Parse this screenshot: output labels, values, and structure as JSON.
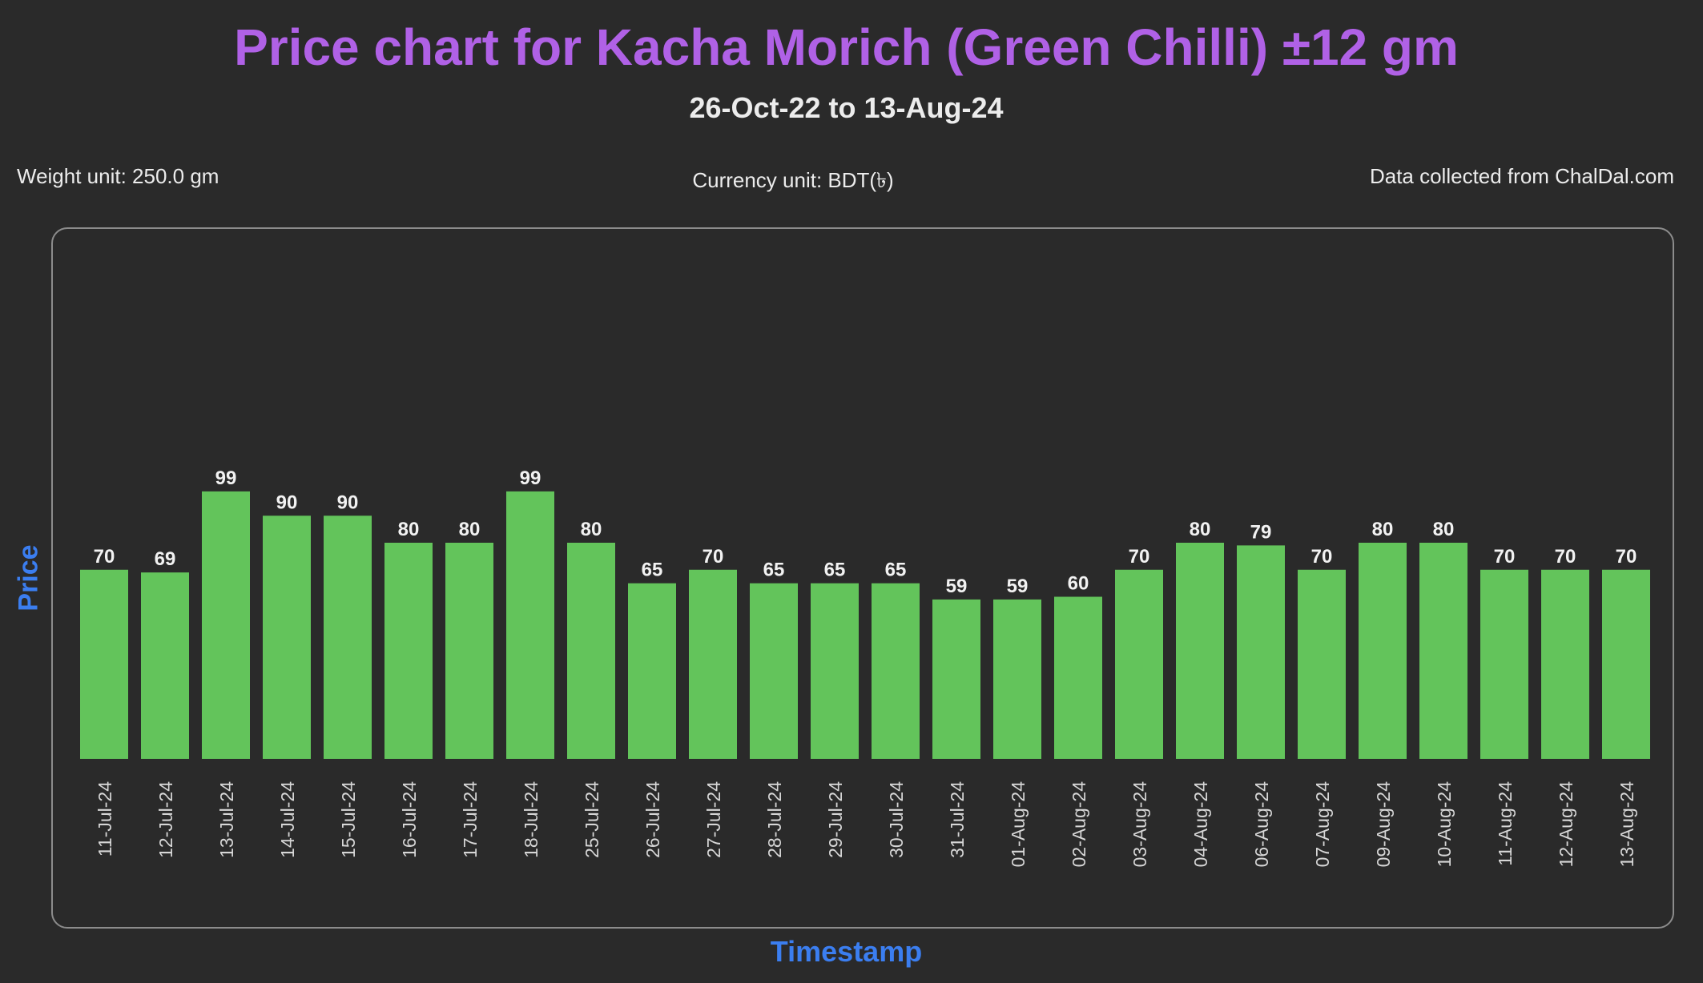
{
  "header": {
    "title": "Price chart for Kacha Morich (Green Chilli) ±12 gm",
    "subtitle": "26-Oct-22 to 13-Aug-24"
  },
  "info": {
    "weight_unit": "Weight unit: 250.0 gm",
    "currency_unit": "Currency unit: BDT(৳)",
    "source": "Data collected from ChalDal.com"
  },
  "colors": {
    "title": "#b061e6",
    "axis_label": "#3b7ef0",
    "bar": "#63c45b",
    "background": "#2a2a2a",
    "tick_label": "#d6d6d6",
    "value_label": "#f2f2f2"
  },
  "chart_data": {
    "type": "bar",
    "title": "Price chart for Kacha Morich (Green Chilli) ±12 gm",
    "subtitle": "26-Oct-22 to 13-Aug-24",
    "xlabel": "Timestamp",
    "ylabel": "Price",
    "ylim": [
      0,
      100
    ],
    "grid": false,
    "categories": [
      "11-Jul-24",
      "12-Jul-24",
      "13-Jul-24",
      "14-Jul-24",
      "15-Jul-24",
      "16-Jul-24",
      "17-Jul-24",
      "18-Jul-24",
      "25-Jul-24",
      "26-Jul-24",
      "27-Jul-24",
      "28-Jul-24",
      "29-Jul-24",
      "30-Jul-24",
      "31-Jul-24",
      "01-Aug-24",
      "02-Aug-24",
      "03-Aug-24",
      "04-Aug-24",
      "06-Aug-24",
      "07-Aug-24",
      "09-Aug-24",
      "10-Aug-24",
      "11-Aug-24",
      "12-Aug-24",
      "13-Aug-24"
    ],
    "values": [
      70,
      69,
      99,
      90,
      90,
      80,
      80,
      99,
      80,
      65,
      70,
      65,
      65,
      65,
      59,
      59,
      60,
      70,
      80,
      79,
      70,
      80,
      80,
      70,
      70,
      70
    ]
  }
}
